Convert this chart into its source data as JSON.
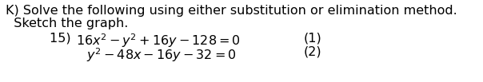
{
  "line1": "K) Solve the following using either substitution or elimination method.",
  "line2": "  Sketch the graph.",
  "eq1_prefix": "15) ",
  "eq1_math": "$16x^2 - y^2 + 16y - 128 = 0$",
  "eq1_num": "(1)",
  "eq2_math": "$y^2 - 48x - 16y - 32 = 0$",
  "eq2_num": "(2)",
  "bg_color": "#ffffff",
  "text_color": "#000000",
  "font_size": 11.5,
  "fig_width": 6.04,
  "fig_height": 1.03,
  "dpi": 100
}
